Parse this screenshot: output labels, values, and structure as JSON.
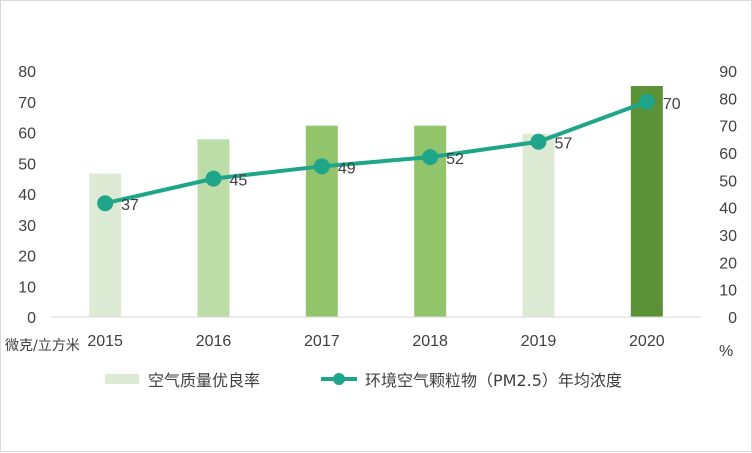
{
  "chart_data": {
    "type": "bar+line",
    "categories": [
      "2015",
      "2016",
      "2017",
      "2018",
      "2019",
      "2020"
    ],
    "series": [
      {
        "name": "空气质量优良率",
        "type": "bar",
        "axis": "right",
        "values": [
          52.5,
          65.0,
          70.0,
          70.0,
          67.0,
          84.5
        ],
        "colors": [
          "#deebd4",
          "#bcdca8",
          "#92c46c",
          "#92c46c",
          "#deebd4",
          "#5b9238"
        ]
      },
      {
        "name": "环境空气颗粒物（PM2.5）年均浓度",
        "type": "line",
        "axis": "left",
        "values": [
          37,
          45,
          49,
          52,
          57,
          70
        ],
        "labels": [
          "37",
          "45",
          "49",
          "52",
          "57",
          "70"
        ],
        "color": "#1fa58a"
      }
    ],
    "left_axis": {
      "unit": "微克/立方米",
      "ylim": [
        0,
        80
      ],
      "ticks": [
        "0",
        "10",
        "20",
        "30",
        "40",
        "50",
        "60",
        "70",
        "80"
      ]
    },
    "right_axis": {
      "unit": "%",
      "ylim": [
        0,
        90
      ],
      "ticks": [
        "0",
        "10",
        "20",
        "30",
        "40",
        "50",
        "60",
        "70",
        "80",
        "90"
      ]
    },
    "grid": false,
    "legend_position": "bottom"
  }
}
